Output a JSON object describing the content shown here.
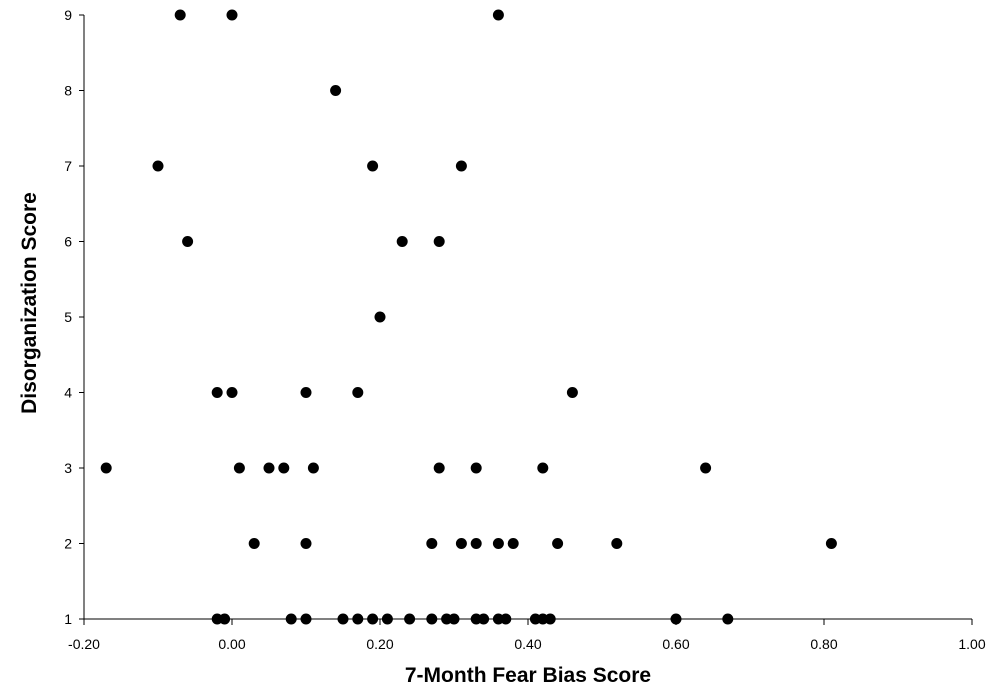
{
  "chart_data": {
    "type": "scatter",
    "title": "",
    "xlabel": "7-Month Fear Bias Score",
    "ylabel": "Disorganization Score",
    "xlim": [
      -0.2,
      1.0
    ],
    "ylim": [
      1,
      9
    ],
    "x_ticks": [
      "-0.20",
      "0.00",
      "0.20",
      "0.40",
      "0.60",
      "0.80",
      "1.00"
    ],
    "y_ticks": [
      "1",
      "2",
      "3",
      "4",
      "5",
      "6",
      "7",
      "8",
      "9"
    ],
    "grid": false,
    "legend": "none",
    "marker_color": "#000000",
    "series": [
      {
        "points": [
          [
            -0.07,
            9
          ],
          [
            0.0,
            9
          ],
          [
            0.36,
            9
          ],
          [
            0.14,
            8
          ],
          [
            -0.1,
            7
          ],
          [
            0.19,
            7
          ],
          [
            0.31,
            7
          ],
          [
            -0.06,
            6
          ],
          [
            0.23,
            6
          ],
          [
            0.28,
            6
          ],
          [
            0.2,
            5
          ],
          [
            -0.02,
            4
          ],
          [
            0.0,
            4
          ],
          [
            0.1,
            4
          ],
          [
            0.17,
            4
          ],
          [
            0.46,
            4
          ],
          [
            -0.17,
            3
          ],
          [
            0.01,
            3
          ],
          [
            0.05,
            3
          ],
          [
            0.07,
            3
          ],
          [
            0.11,
            3
          ],
          [
            0.28,
            3
          ],
          [
            0.33,
            3
          ],
          [
            0.42,
            3
          ],
          [
            0.64,
            3
          ],
          [
            0.03,
            2
          ],
          [
            0.1,
            2
          ],
          [
            0.27,
            2
          ],
          [
            0.31,
            2
          ],
          [
            0.33,
            2
          ],
          [
            0.36,
            2
          ],
          [
            0.38,
            2
          ],
          [
            0.44,
            2
          ],
          [
            0.52,
            2
          ],
          [
            0.81,
            2
          ],
          [
            -0.02,
            1
          ],
          [
            -0.01,
            1
          ],
          [
            0.08,
            1
          ],
          [
            0.1,
            1
          ],
          [
            0.15,
            1
          ],
          [
            0.17,
            1
          ],
          [
            0.19,
            1
          ],
          [
            0.21,
            1
          ],
          [
            0.24,
            1
          ],
          [
            0.27,
            1
          ],
          [
            0.29,
            1
          ],
          [
            0.3,
            1
          ],
          [
            0.33,
            1
          ],
          [
            0.34,
            1
          ],
          [
            0.36,
            1
          ],
          [
            0.37,
            1
          ],
          [
            0.41,
            1
          ],
          [
            0.42,
            1
          ],
          [
            0.43,
            1
          ],
          [
            0.6,
            1
          ],
          [
            0.67,
            1
          ]
        ]
      }
    ]
  }
}
